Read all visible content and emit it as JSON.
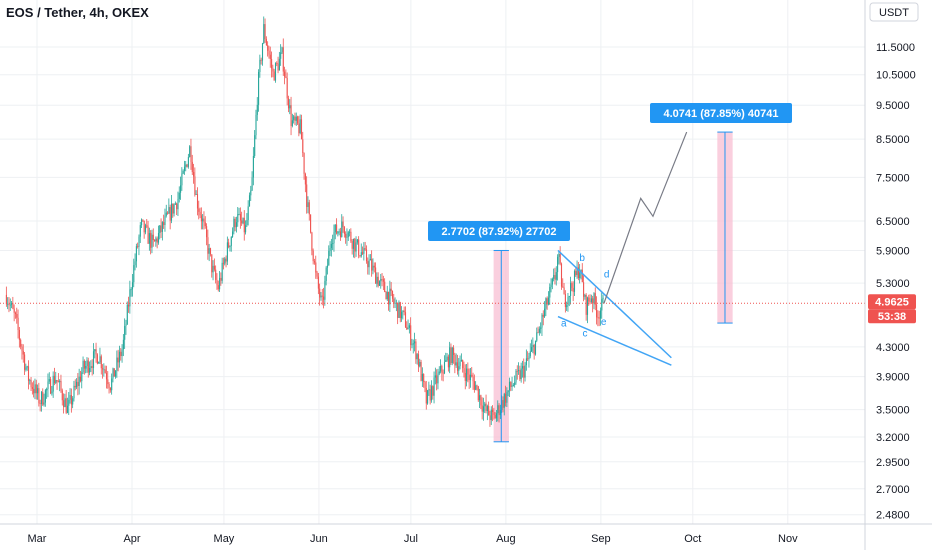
{
  "header": {
    "title": "EOS / Tether, 4h, OKEX"
  },
  "currency_button": "USDT",
  "price_badge": {
    "price": "4.9625",
    "countdown": "53:38"
  },
  "chart_data": {
    "type": "candlestick",
    "symbol": "EOS / Tether",
    "interval": "4h",
    "exchange": "OKEX",
    "scale": "log",
    "x_ticks": [
      "Mar",
      "Apr",
      "May",
      "Jun",
      "Jul",
      "Aug",
      "Sep",
      "Oct",
      "Nov"
    ],
    "y_ticks": [
      "11.5000",
      "10.5000",
      "9.5000",
      "8.5000",
      "7.5000",
      "6.5000",
      "5.9000",
      "5.3000",
      "4.3000",
      "3.9000",
      "3.5000",
      "3.2000",
      "2.9500",
      "2.7000",
      "2.4800"
    ],
    "y_tick_values": [
      11.5,
      10.5,
      9.5,
      8.5,
      7.5,
      6.5,
      5.9,
      5.3,
      4.3,
      3.9,
      3.5,
      3.2,
      2.95,
      2.7,
      2.48
    ],
    "last_price": 4.9625,
    "up_color": "#26a69a",
    "down_color": "#ef5350",
    "price_path": [
      {
        "date": "2020-02-20",
        "price": 5.1
      },
      {
        "date": "2020-02-23",
        "price": 4.7
      },
      {
        "date": "2020-02-27",
        "price": 3.9
      },
      {
        "date": "2020-03-02",
        "price": 3.6
      },
      {
        "date": "2020-03-07",
        "price": 3.9
      },
      {
        "date": "2020-03-11",
        "price": 3.5
      },
      {
        "date": "2020-03-16",
        "price": 4.0
      },
      {
        "date": "2020-03-21",
        "price": 4.2
      },
      {
        "date": "2020-03-25",
        "price": 3.8
      },
      {
        "date": "2020-03-29",
        "price": 4.3
      },
      {
        "date": "2020-04-01",
        "price": 5.4
      },
      {
        "date": "2020-04-04",
        "price": 6.4
      },
      {
        "date": "2020-04-08",
        "price": 6.0
      },
      {
        "date": "2020-04-12",
        "price": 6.5
      },
      {
        "date": "2020-04-16",
        "price": 7.0
      },
      {
        "date": "2020-04-20",
        "price": 8.3
      },
      {
        "date": "2020-04-22",
        "price": 7.0
      },
      {
        "date": "2020-04-24",
        "price": 6.5
      },
      {
        "date": "2020-04-27",
        "price": 5.6
      },
      {
        "date": "2020-04-29",
        "price": 5.2
      },
      {
        "date": "2020-05-02",
        "price": 5.9
      },
      {
        "date": "2020-05-05",
        "price": 6.6
      },
      {
        "date": "2020-05-08",
        "price": 6.3
      },
      {
        "date": "2020-05-10",
        "price": 7.2
      },
      {
        "date": "2020-05-12",
        "price": 10.0
      },
      {
        "date": "2020-05-14",
        "price": 12.2
      },
      {
        "date": "2020-05-17",
        "price": 10.5
      },
      {
        "date": "2020-05-20",
        "price": 11.2
      },
      {
        "date": "2020-05-23",
        "price": 9.0
      },
      {
        "date": "2020-05-26",
        "price": 8.8
      },
      {
        "date": "2020-05-28",
        "price": 7.0
      },
      {
        "date": "2020-05-31",
        "price": 5.4
      },
      {
        "date": "2020-06-02",
        "price": 4.9
      },
      {
        "date": "2020-06-05",
        "price": 6.2
      },
      {
        "date": "2020-06-09",
        "price": 6.4
      },
      {
        "date": "2020-06-13",
        "price": 6.0
      },
      {
        "date": "2020-06-17",
        "price": 5.7
      },
      {
        "date": "2020-06-21",
        "price": 5.3
      },
      {
        "date": "2020-06-25",
        "price": 5.0
      },
      {
        "date": "2020-06-29",
        "price": 4.7
      },
      {
        "date": "2020-07-03",
        "price": 4.2
      },
      {
        "date": "2020-07-06",
        "price": 3.6
      },
      {
        "date": "2020-07-10",
        "price": 3.9
      },
      {
        "date": "2020-07-14",
        "price": 4.2
      },
      {
        "date": "2020-07-18",
        "price": 4.0
      },
      {
        "date": "2020-07-22",
        "price": 3.8
      },
      {
        "date": "2020-07-25",
        "price": 3.5
      },
      {
        "date": "2020-07-28",
        "price": 3.4
      },
      {
        "date": "2020-07-31",
        "price": 3.6
      },
      {
        "date": "2020-08-03",
        "price": 3.8
      },
      {
        "date": "2020-08-07",
        "price": 4.0
      },
      {
        "date": "2020-08-11",
        "price": 4.4
      },
      {
        "date": "2020-08-14",
        "price": 4.9
      },
      {
        "date": "2020-08-17",
        "price": 5.4
      },
      {
        "date": "2020-08-18",
        "price": 5.8
      },
      {
        "date": "2020-08-20",
        "price": 5.0
      },
      {
        "date": "2020-08-23",
        "price": 5.3
      },
      {
        "date": "2020-08-25",
        "price": 5.6
      },
      {
        "date": "2020-08-27",
        "price": 4.9
      },
      {
        "date": "2020-08-29",
        "price": 5.1
      },
      {
        "date": "2020-08-31",
        "price": 4.8
      },
      {
        "date": "2020-09-02",
        "price": 4.96
      }
    ],
    "annotations": {
      "range_labels": [
        "2.7702 (87.92%) 27702",
        "4.0741 (87.85%) 40741"
      ],
      "wave_labels": [
        "a",
        "b",
        "c",
        "d",
        "e"
      ]
    }
  }
}
